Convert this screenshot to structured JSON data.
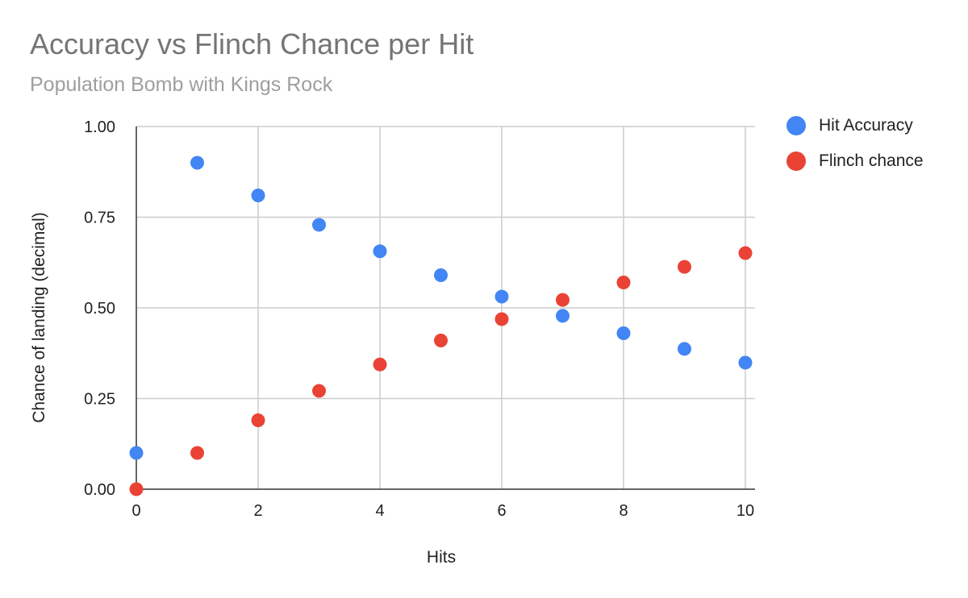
{
  "chart_data": {
    "type": "scatter",
    "title": "Accuracy vs Flinch Chance per Hit",
    "subtitle": "Population Bomb with Kings Rock",
    "xlabel": "Hits",
    "ylabel": "Chance of landing (decimal)",
    "xlim": [
      0,
      10
    ],
    "ylim": [
      0,
      1
    ],
    "x_ticks": [
      "0",
      "2",
      "4",
      "6",
      "8",
      "10"
    ],
    "y_ticks": [
      "0.00",
      "0.25",
      "0.50",
      "0.75",
      "1.00"
    ],
    "grid": true,
    "legend_position": "right",
    "series": [
      {
        "name": "Hit Accuracy",
        "color": "#4285f4",
        "x": [
          0,
          1,
          2,
          3,
          4,
          5,
          6,
          7,
          8,
          9,
          10
        ],
        "y": [
          0.1,
          0.9,
          0.81,
          0.729,
          0.656,
          0.59,
          0.531,
          0.478,
          0.43,
          0.387,
          0.349
        ]
      },
      {
        "name": "Flinch chance",
        "color": "#ea4335",
        "x": [
          0,
          1,
          2,
          3,
          4,
          5,
          6,
          7,
          8,
          9,
          10
        ],
        "y": [
          0.0,
          0.1,
          0.19,
          0.271,
          0.344,
          0.41,
          0.469,
          0.522,
          0.57,
          0.613,
          0.651
        ]
      }
    ]
  }
}
